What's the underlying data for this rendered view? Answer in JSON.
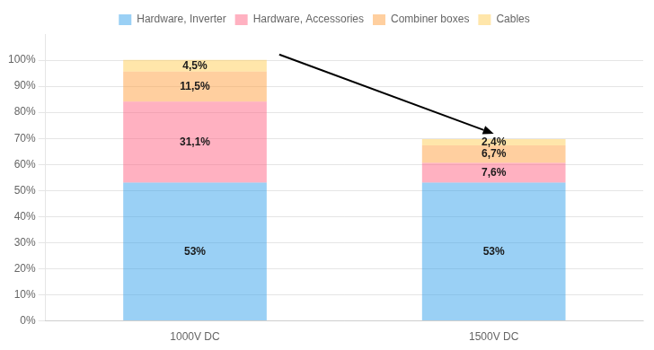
{
  "chart_data": {
    "type": "bar",
    "stacked": true,
    "categories": [
      "1000V DC",
      "1500V DC"
    ],
    "series": [
      {
        "name": "Hardware, Inverter",
        "values": [
          53.0,
          53.0
        ],
        "value_labels": [
          "53%",
          "53%"
        ]
      },
      {
        "name": "Hardware, Accessories",
        "values": [
          31.1,
          7.6
        ],
        "value_labels": [
          "31,1%",
          "7,6%"
        ]
      },
      {
        "name": "Combiner boxes",
        "values": [
          11.5,
          6.7
        ],
        "value_labels": [
          "11,5%",
          "6,7%"
        ]
      },
      {
        "name": "Cables",
        "values": [
          4.5,
          2.4
        ],
        "value_labels": [
          "4,5%",
          "2,4%"
        ]
      }
    ],
    "ylim": [
      0,
      110
    ],
    "yticks": [
      {
        "value": 0,
        "label": "0%"
      },
      {
        "value": 10,
        "label": "10%"
      },
      {
        "value": 20,
        "label": "20%"
      },
      {
        "value": 30,
        "label": "30%"
      },
      {
        "value": 40,
        "label": "40%"
      },
      {
        "value": 50,
        "label": "50%"
      },
      {
        "value": 60,
        "label": "60%"
      },
      {
        "value": 70,
        "label": "70%"
      },
      {
        "value": 80,
        "label": "80%"
      },
      {
        "value": 90,
        "label": "90%"
      },
      {
        "value": 100,
        "label": "100%"
      }
    ],
    "grid": true,
    "legend": "top",
    "data_labels": true
  }
}
